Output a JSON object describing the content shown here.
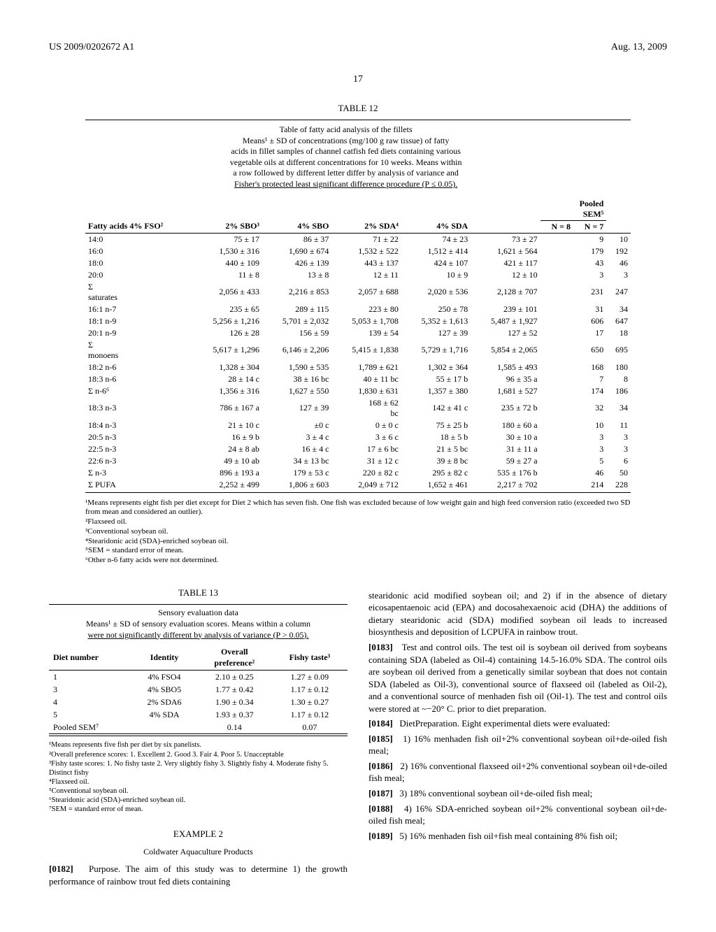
{
  "header": {
    "pub_no": "US 2009/0202672 A1",
    "date": "Aug. 13, 2009",
    "page": "17"
  },
  "table12": {
    "label": "TABLE 12",
    "caption": "Table of fatty acid analysis of the fillets\nMeans¹ ± SD of concentrations (mg/100 g raw tissue) of fatty\nacids in fillet samples of channel catfish fed diets containing various\nvegetable oils at different concentrations for 10 weeks. Means within\na row followed by different letter differ by analysis of variance and",
    "caption_last": "Fisher's protected least significant difference procedure (P ≤ 0.05).",
    "headers": {
      "c0": "Fatty acids",
      "c1": "4% FSO²",
      "c2": "2% SBO³",
      "c3": "4% SBO",
      "c4": "2% SDA⁴",
      "c5": "4% SDA",
      "pooled": "Pooled\nSEM⁵",
      "n8": "N = 8",
      "n7": "N = 7"
    },
    "rows": [
      {
        "fa": "14:0",
        "v": [
          "75 ± 17",
          "86 ± 37",
          "71 ± 22",
          "74 ± 23",
          "73 ± 27",
          "9",
          "10"
        ]
      },
      {
        "fa": "16:0",
        "v": [
          "1,530 ± 316",
          "1,690 ± 674",
          "1,532 ± 522",
          "1,512 ± 414",
          "1,621 ± 564",
          "179",
          "192"
        ]
      },
      {
        "fa": "18:0",
        "v": [
          "440 ± 109",
          "426 ± 139",
          "443 ± 137",
          "424 ± 107",
          "421 ± 117",
          "43",
          "46"
        ]
      },
      {
        "fa": "20:0",
        "v": [
          "11 ± 8",
          "13 ± 8",
          "12 ± 11",
          "10 ± 9",
          "12 ± 10",
          "3",
          "3"
        ]
      },
      {
        "fa": "Σ\nsaturates",
        "v": [
          "2,056 ± 433",
          "2,216 ± 853",
          "2,057 ± 688",
          "2,020 ± 536",
          "2,128 ± 707",
          "231",
          "247"
        ]
      },
      {
        "fa": "16:1 n-7",
        "v": [
          "235 ± 65",
          "289 ± 115",
          "223 ± 80",
          "250 ± 78",
          "239 ± 101",
          "31",
          "34"
        ]
      },
      {
        "fa": "18:1 n-9",
        "v": [
          "5,256 ± 1,216",
          "5,701 ± 2,032",
          "5,053 ± 1,708",
          "5,352 ± 1,613",
          "5,487 ± 1,927",
          "606",
          "647"
        ]
      },
      {
        "fa": "20:1 n-9",
        "v": [
          "126 ± 28",
          "156 ± 59",
          "139 ± 54",
          "127 ± 39",
          "127 ± 52",
          "17",
          "18"
        ]
      },
      {
        "fa": "Σ\nmonoens",
        "v": [
          "5,617 ± 1,296",
          "6,146 ± 2,206",
          "5,415 ± 1,838",
          "5,729 ± 1,716",
          "5,854 ± 2,065",
          "650",
          "695"
        ]
      },
      {
        "fa": "18:2 n-6",
        "v": [
          "1,328 ± 304",
          "1,590 ± 535",
          "1,789 ± 621",
          "1,302 ± 364",
          "1,585 ± 493",
          "168",
          "180"
        ]
      },
      {
        "fa": "18:3 n-6",
        "v": [
          "28 ± 14 c",
          "38 ± 16 bc",
          "40 ± 11 bc",
          "55 ± 17 b",
          "96 ± 35 a",
          "7",
          "8"
        ]
      },
      {
        "fa": "Σ n-6⁶",
        "v": [
          "1,356 ± 316",
          "1,627 ± 550",
          "1,830 ± 631",
          "1,357 ± 380",
          "1,681 ± 527",
          "174",
          "186"
        ]
      },
      {
        "fa": "18:3 n-3",
        "v": [
          "786 ± 167 a",
          "127 ± 39",
          "168 ± 62\nbc",
          "142 ± 41 c",
          "235 ± 72 b",
          "32",
          "34"
        ]
      },
      {
        "fa": "18:4 n-3",
        "v": [
          "21 ± 10 c",
          "±0 c",
          "0 ± 0 c",
          "75 ± 25 b",
          "180 ± 60 a",
          "10",
          "11"
        ]
      },
      {
        "fa": "20:5 n-3",
        "v": [
          "16 ± 9 b",
          "3 ± 4 c",
          "3 ± 6 c",
          "18 ± 5 b",
          "30 ± 10 a",
          "3",
          "3"
        ]
      },
      {
        "fa": "22:5 n-3",
        "v": [
          "24 ± 8 ab",
          "16 ± 4 c",
          "17 ± 6 bc",
          "21 ± 5 bc",
          "31 ± 11 a",
          "3",
          "3"
        ]
      },
      {
        "fa": "22:6 n-3",
        "v": [
          "49 ± 10 ab",
          "34 ± 13 bc",
          "31 ± 12 c",
          "39 ± 8 bc",
          "59 ± 27 a",
          "5",
          "6"
        ]
      },
      {
        "fa": "Σ n-3",
        "v": [
          "896 ± 193 a",
          "179 ± 53 c",
          "220 ± 82 c",
          "295 ± 82 c",
          "535 ± 176 b",
          "46",
          "50"
        ]
      },
      {
        "fa": "Σ PUFA",
        "v": [
          "2,252 ± 499",
          "1,806 ± 603",
          "2,049 ± 712",
          "1,652 ± 461",
          "2,217 ± 702",
          "214",
          "228"
        ]
      }
    ],
    "footnotes": [
      "¹Means represents eight fish per diet except for Diet 2 which has seven fish. One fish was excluded because of low weight gain and high feed conversion ratio (exceeded two SD from mean and considered an outlier).",
      "²Flaxseed oil.",
      "³Conventional soybean oil.",
      "⁴Stearidonic acid (SDA)-enriched soybean oil.",
      "⁵SEM = standard error of mean.",
      "⁶Other n-6 fatty acids were not determined."
    ]
  },
  "table13": {
    "label": "TABLE 13",
    "caption": "Sensory evaluation data\nMeans¹ ± SD of sensory evaluation scores. Means within a column",
    "caption_last": "were not significantly different by analysis of variance (P > 0.05).",
    "headers": {
      "c0": "Diet number",
      "c1": "Identity",
      "c2": "Overall\npreference²",
      "c3": "Fishy taste³"
    },
    "rows": [
      {
        "v": [
          "1",
          "4% FSO4",
          "2.10 ± 0.25",
          "1.27 ± 0.09"
        ]
      },
      {
        "v": [
          "3",
          "4% SBO5",
          "1.77 ± 0.42",
          "1.17 ± 0.12"
        ]
      },
      {
        "v": [
          "4",
          "2% SDA6",
          "1.90 ± 0.34",
          "1.30 ± 0.27"
        ]
      },
      {
        "v": [
          "5",
          "4% SDA",
          "1.93 ± 0.37",
          "1.17 ± 0.12"
        ]
      },
      {
        "v": [
          "Pooled SEM⁷",
          "",
          "0.14",
          "0.07"
        ]
      }
    ],
    "footnotes": [
      "¹Means represents five fish per diet by six panelists.",
      "²Overall preference scores: 1. Excellent 2. Good 3. Fair 4. Poor 5. Unacceptable",
      "³Fishy taste scores: 1. No fishy taste 2. Very slightly fishy 3. Slightly fishy 4. Moderate fishy 5. Distinct fishy",
      "⁴Flaxseed oil.",
      "⁵Conventional soybean oil.",
      "⁶Stearidonic acid (SDA)-enriched soybean oil.",
      "⁷SEM = standard error of mean."
    ]
  },
  "example": {
    "title": "EXAMPLE 2",
    "subtitle": "Coldwater Aquaculture Products",
    "p0182": "Purpose. The aim of this study was to determine 1) the growth performance of rainbow trout fed diets containing",
    "right_intro": "stearidonic acid modified soybean oil; and 2) if in the absence of dietary eicosapentaenoic acid (EPA) and docosahexaenoic acid (DHA) the additions of dietary stearidonic acid (SDA) modified soybean oil leads to increased biosynthesis and deposition of LCPUFA in rainbow trout.",
    "p0183": "Test and control oils. The test oil is soybean oil derived from soybeans containing SDA (labeled as Oil-4) containing 14.5-16.0% SDA. The control oils are soybean oil derived from a genetically similar soybean that does not contain SDA (labeled as Oil-3), conventional source of flaxseed oil (labeled as Oil-2), and a conventional source of menhaden fish oil (Oil-1). The test and control oils were stored at ~−20° C. prior to diet preparation.",
    "p0184": "DietPreparation. Eight experimental diets were evaluated:",
    "p0185": "1) 16% menhaden fish oil+2% conventional soybean oil+de-oiled fish meal;",
    "p0186": "2) 16% conventional flaxseed oil+2% conventional soybean oil+de-oiled fish meal;",
    "p0187": "3) 18% conventional soybean oil+de-oiled fish meal;",
    "p0188": "4) 16% SDA-enriched soybean oil+2% conventional soybean oil+de-oiled fish meal;",
    "p0189": "5) 16% menhaden fish oil+fish meal containing 8% fish oil;"
  }
}
